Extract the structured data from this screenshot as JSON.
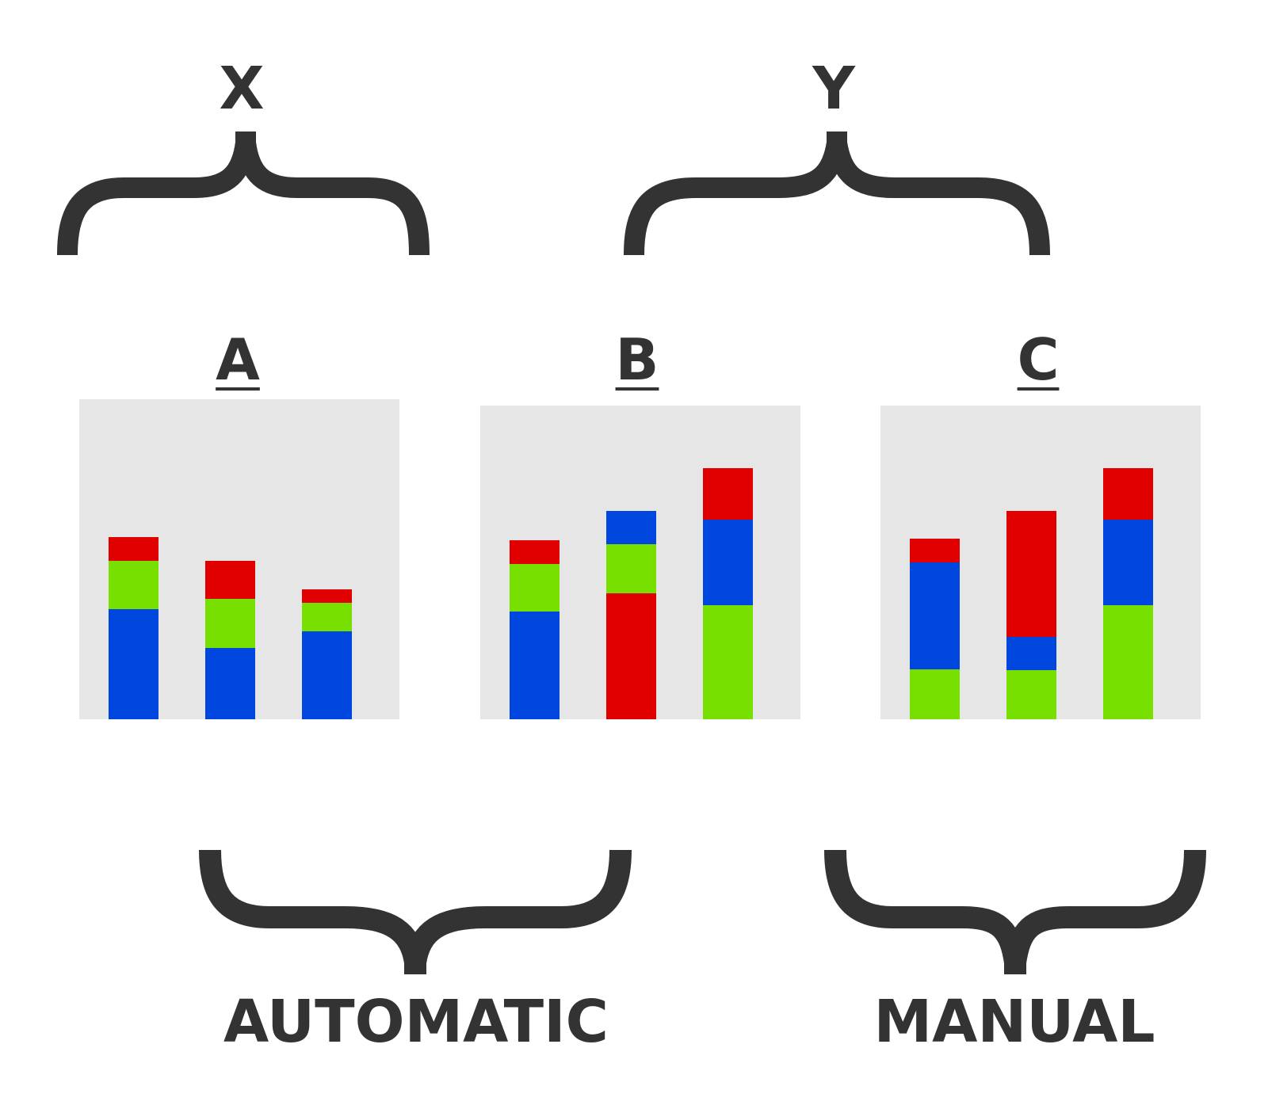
{
  "top_groups": [
    {
      "label": "X"
    },
    {
      "label": "Y"
    }
  ],
  "bottom_groups": [
    {
      "label": "AUTOMATIC"
    },
    {
      "label": "MANUAL"
    }
  ],
  "colors": {
    "red": "#e00000",
    "green": "#77e000",
    "blue": "#0047e0",
    "panel": "#e6e6e6",
    "ink": "#333333"
  },
  "panels": [
    {
      "label": "A",
      "bars": [
        {
          "segments": [
            {
              "color": "blue",
              "value": 139
            },
            {
              "color": "green",
              "value": 61
            },
            {
              "color": "red",
              "value": 30
            }
          ]
        },
        {
          "segments": [
            {
              "color": "blue",
              "value": 90
            },
            {
              "color": "green",
              "value": 62
            },
            {
              "color": "red",
              "value": 48
            }
          ]
        },
        {
          "segments": [
            {
              "color": "blue",
              "value": 111
            },
            {
              "color": "green",
              "value": 36
            },
            {
              "color": "red",
              "value": 17
            }
          ]
        }
      ]
    },
    {
      "label": "B",
      "bars": [
        {
          "segments": [
            {
              "color": "blue",
              "value": 136
            },
            {
              "color": "green",
              "value": 60
            },
            {
              "color": "red",
              "value": 30
            }
          ]
        },
        {
          "segments": [
            {
              "color": "red",
              "value": 159
            },
            {
              "color": "green",
              "value": 62
            },
            {
              "color": "blue",
              "value": 42
            }
          ]
        },
        {
          "segments": [
            {
              "color": "green",
              "value": 144
            },
            {
              "color": "blue",
              "value": 108
            },
            {
              "color": "red",
              "value": 65
            }
          ]
        }
      ]
    },
    {
      "label": "C",
      "bars": [
        {
          "segments": [
            {
              "color": "green",
              "value": 63
            },
            {
              "color": "blue",
              "value": 135
            },
            {
              "color": "red",
              "value": 30
            }
          ]
        },
        {
          "segments": [
            {
              "color": "green",
              "value": 62
            },
            {
              "color": "blue",
              "value": 42
            },
            {
              "color": "red",
              "value": 159
            }
          ]
        },
        {
          "segments": [
            {
              "color": "green",
              "value": 144
            },
            {
              "color": "blue",
              "value": 108
            },
            {
              "color": "red",
              "value": 65
            }
          ]
        }
      ]
    }
  ]
}
